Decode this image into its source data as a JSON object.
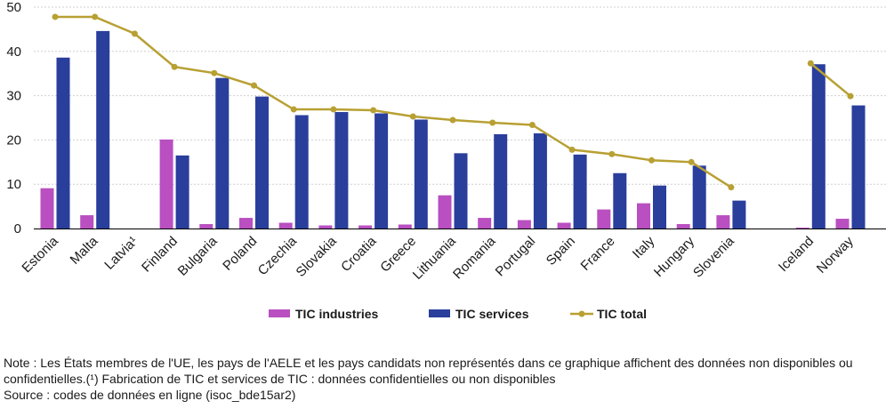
{
  "chart_data": {
    "type": "bar",
    "categories": [
      "Estonia",
      "Malta",
      "Latvia¹",
      "Finland",
      "Bulgaria",
      "Poland",
      "Czechia",
      "Slovakia",
      "Croatia",
      "Greece",
      "Lithuania",
      "Romania",
      "Portugal",
      "Spain",
      "France",
      "Italy",
      "Hungary",
      "Slovenia",
      "",
      "Iceland",
      "Norway"
    ],
    "series": [
      {
        "name": "TIC industries",
        "type": "bar",
        "color": "#b94fc0",
        "values": [
          9.1,
          3.0,
          null,
          20.1,
          1.0,
          2.4,
          1.3,
          0.7,
          0.7,
          0.9,
          7.5,
          2.4,
          1.9,
          1.3,
          4.3,
          5.7,
          1.0,
          3.0,
          null,
          0.2,
          2.2
        ]
      },
      {
        "name": "TIC services",
        "type": "bar",
        "color": "#2a3e9c",
        "values": [
          38.6,
          44.6,
          null,
          16.5,
          34.0,
          29.8,
          25.6,
          26.3,
          26.0,
          24.6,
          17.0,
          21.3,
          21.5,
          16.7,
          12.5,
          9.7,
          14.2,
          6.3,
          null,
          37.1,
          27.8
        ]
      },
      {
        "name": "TIC total",
        "type": "line",
        "color": "#b8a033",
        "values": [
          47.8,
          47.8,
          44.0,
          36.5,
          35.1,
          32.3,
          26.9,
          26.9,
          26.7,
          25.3,
          24.5,
          23.9,
          23.4,
          17.8,
          16.8,
          15.4,
          15.0,
          9.3,
          null,
          37.3,
          29.9
        ]
      }
    ],
    "ylim": [
      0,
      50
    ],
    "yticks": [
      "0",
      "10",
      "20",
      "30",
      "40",
      "50"
    ],
    "grid": true,
    "legend_position": "bottom"
  },
  "notes": {
    "line1": "Note : Les États membres de l'UE, les pays de l'AELE et les pays candidats non représentés dans ce graphique affichent des données non disponibles ou confidentielles.(¹) Fabrication de TIC et services de TIC : données confidentielles ou non disponibles",
    "source": "Source : codes de données en ligne (isoc_bde15ar2)"
  }
}
